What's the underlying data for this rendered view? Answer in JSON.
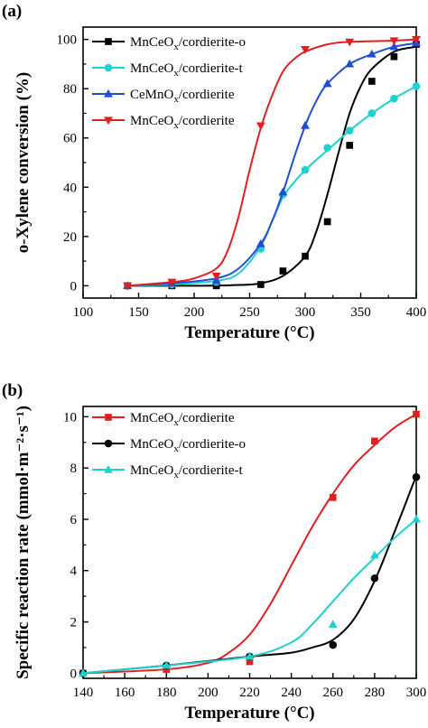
{
  "chart_data": [
    {
      "type": "line",
      "panel_label": "(a)",
      "xlabel": "Temperature (°C)",
      "ylabel": "o-Xylene conversion (%)",
      "xlim": [
        100,
        400
      ],
      "ylim": [
        -5,
        105
      ],
      "xticks": [
        100,
        150,
        200,
        250,
        300,
        350,
        400
      ],
      "yticks": [
        0,
        20,
        40,
        60,
        80,
        100
      ],
      "grid": false,
      "legend": "top-left",
      "series": [
        {
          "name": "MnCeOx/cordierite-o",
          "name_parts": [
            "MnCeO",
            "x",
            "/cordierite-o"
          ],
          "color": "#000000",
          "marker": "square",
          "x": [
            140,
            180,
            220,
            260,
            280,
            300,
            320,
            340,
            360,
            380,
            400
          ],
          "y": [
            0,
            0,
            0,
            0.5,
            6,
            12,
            26,
            57,
            83,
            93,
            98
          ],
          "fit_x": [
            140,
            200,
            240,
            260,
            280,
            300,
            310,
            320,
            330,
            340,
            350,
            360,
            380,
            400
          ],
          "fit_y": [
            0,
            0,
            0.3,
            1,
            4,
            12,
            22,
            37,
            54,
            70,
            81,
            88,
            95,
            97
          ]
        },
        {
          "name": "MnCeOx/cordierite-t",
          "name_parts": [
            "MnCeO",
            "x",
            "/cordierite-t"
          ],
          "color": "#1fd0d0",
          "marker": "circle",
          "x": [
            140,
            180,
            220,
            260,
            280,
            300,
            320,
            340,
            360,
            380,
            400
          ],
          "y": [
            0,
            0.5,
            1.5,
            15,
            37,
            47,
            56,
            63,
            70,
            76,
            81
          ],
          "fit_x": [
            140,
            180,
            220,
            240,
            260,
            270,
            280,
            290,
            300,
            320,
            340,
            360,
            380,
            400
          ],
          "fit_y": [
            0,
            0.5,
            2,
            5,
            16,
            26,
            36,
            42,
            47,
            55,
            63,
            70,
            76,
            81
          ]
        },
        {
          "name": "CeMnOx/cordierite",
          "name_parts": [
            "CeMnO",
            "x",
            "/cordierite"
          ],
          "color": "#1f4fd0",
          "marker": "triangle-up",
          "x": [
            140,
            180,
            220,
            260,
            280,
            300,
            320,
            340,
            360,
            380,
            400
          ],
          "y": [
            0,
            1,
            2,
            17,
            38,
            65,
            82,
            90,
            94,
            97,
            98.5
          ],
          "fit_x": [
            140,
            180,
            220,
            240,
            260,
            270,
            280,
            290,
            300,
            310,
            320,
            340,
            360,
            380,
            400
          ],
          "fit_y": [
            0,
            1,
            3,
            7,
            17,
            26,
            38,
            52,
            65,
            75,
            82,
            90,
            94,
            97,
            98.5
          ]
        },
        {
          "name": "MnCeOx/cordierite",
          "name_parts": [
            "MnCeO",
            "x",
            "/cordierite"
          ],
          "color": "#e02020",
          "marker": "triangle-down",
          "x": [
            140,
            180,
            220,
            260,
            300,
            340,
            380,
            400
          ],
          "y": [
            0,
            1.5,
            4,
            65,
            96,
            99,
            99.5,
            100
          ],
          "fit_x": [
            140,
            180,
            200,
            220,
            230,
            240,
            250,
            260,
            270,
            280,
            290,
            300,
            320,
            340,
            380,
            400
          ],
          "fit_y": [
            0,
            1.5,
            3,
            7,
            14,
            28,
            47,
            64,
            77,
            87,
            92,
            95,
            98,
            99,
            99.5,
            100
          ]
        }
      ]
    },
    {
      "type": "line",
      "panel_label": "(b)",
      "xlabel": "Temperature (°C)",
      "ylabel": "Specific reaction rate (mmol·m⁻²·s⁻¹)",
      "xlim": [
        140,
        300
      ],
      "ylim": [
        -0.2,
        10.4
      ],
      "xticks": [
        140,
        160,
        180,
        200,
        220,
        240,
        260,
        280,
        300
      ],
      "yticks": [
        0,
        2,
        4,
        6,
        8,
        10
      ],
      "grid": false,
      "legend": "top-left",
      "series": [
        {
          "name": "MnCeOx/cordierite",
          "name_parts": [
            "MnCeO",
            "x",
            "/cordierite"
          ],
          "color": "#e02020",
          "marker": "square",
          "x": [
            140,
            180,
            220,
            260,
            280,
            300
          ],
          "y": [
            0,
            0.15,
            0.45,
            6.85,
            9.05,
            10.1
          ],
          "fit_x": [
            140,
            180,
            200,
            210,
            220,
            230,
            240,
            250,
            260,
            270,
            280,
            290,
            300
          ],
          "fit_y": [
            0,
            0.15,
            0.4,
            0.8,
            1.5,
            2.7,
            4.2,
            5.7,
            7.0,
            8.1,
            8.9,
            9.6,
            10.1
          ]
        },
        {
          "name": "MnCeOx/cordierite-o",
          "name_parts": [
            "MnCeO",
            "x",
            "/cordierite-o"
          ],
          "color": "#000000",
          "marker": "circle",
          "x": [
            140,
            180,
            220,
            260,
            280,
            300
          ],
          "y": [
            0,
            0.3,
            0.65,
            1.1,
            3.7,
            7.65
          ],
          "fit_x": [
            140,
            180,
            220,
            240,
            250,
            260,
            270,
            280,
            290,
            300
          ],
          "fit_y": [
            0,
            0.3,
            0.65,
            0.8,
            1.0,
            1.3,
            2.1,
            3.6,
            5.6,
            7.7
          ]
        },
        {
          "name": "MnCeOx/cordierite-t",
          "name_parts": [
            "MnCeO",
            "x",
            "/cordierite-t"
          ],
          "color": "#1fd0d0",
          "marker": "triangle-up",
          "x": [
            140,
            180,
            220,
            260,
            280,
            300
          ],
          "y": [
            0,
            0.3,
            0.65,
            1.9,
            4.6,
            6.0
          ],
          "fit_x": [
            140,
            180,
            220,
            240,
            250,
            260,
            270,
            280,
            290,
            300
          ],
          "fit_y": [
            0,
            0.3,
            0.65,
            1.2,
            1.9,
            2.8,
            3.7,
            4.5,
            5.3,
            6.0
          ]
        }
      ]
    }
  ]
}
